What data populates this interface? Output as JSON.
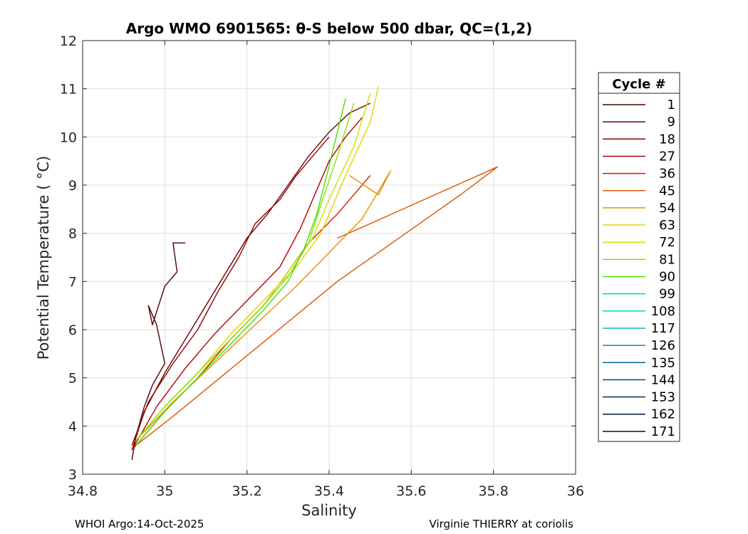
{
  "chart_data": {
    "type": "line",
    "title": "Argo WMO 6901565: θ-S below 500 dbar,  QC=(1,2)",
    "xlabel": "Salinity",
    "ylabel": "Potential Temperature ( °C)",
    "xlim": [
      34.8,
      36
    ],
    "ylim": [
      3,
      12
    ],
    "xticks": [
      34.8,
      35,
      35.2,
      35.4,
      35.6,
      35.8,
      36
    ],
    "xtick_labels": [
      "34.8",
      "35",
      "35.2",
      "35.4",
      "35.6",
      "35.8",
      "36"
    ],
    "yticks": [
      3,
      4,
      5,
      6,
      7,
      8,
      9,
      10,
      11,
      12
    ],
    "ytick_labels": [
      "3",
      "4",
      "5",
      "6",
      "7",
      "8",
      "9",
      "10",
      "11",
      "12"
    ],
    "grid": true,
    "legend_title": "Cycle #",
    "legend_position": "outside-right",
    "series": [
      {
        "name": "1",
        "color": "#4d0000",
        "x": [
          34.92,
          34.93,
          34.95,
          34.97,
          35.0,
          34.98,
          34.96,
          34.97,
          35.0,
          35.03,
          35.02,
          35.05
        ],
        "y": [
          3.3,
          3.8,
          4.4,
          4.85,
          5.3,
          6.1,
          6.5,
          6.1,
          6.9,
          7.2,
          7.8,
          7.8
        ]
      },
      {
        "name": "9",
        "color": "#6e0000",
        "x": [
          34.92,
          34.95,
          35.0,
          35.05,
          35.1,
          35.15,
          35.2,
          35.25,
          35.3,
          35.35,
          35.4,
          35.45,
          35.5
        ],
        "y": [
          3.5,
          4.3,
          5.1,
          5.8,
          6.5,
          7.2,
          7.9,
          8.4,
          9.0,
          9.6,
          10.1,
          10.5,
          10.7
        ]
      },
      {
        "name": "18",
        "color": "#900000",
        "x": [
          34.92,
          34.96,
          35.02,
          35.08,
          35.13,
          35.18,
          35.22,
          35.28,
          35.32,
          35.36,
          35.4
        ],
        "y": [
          3.6,
          4.5,
          5.3,
          6.0,
          6.8,
          7.5,
          8.2,
          8.7,
          9.2,
          9.6,
          10.0
        ]
      },
      {
        "name": "27",
        "color": "#b80000",
        "x": [
          34.92,
          34.98,
          35.05,
          35.12,
          35.2,
          35.28,
          35.33,
          35.37,
          35.4,
          35.44,
          35.48
        ],
        "y": [
          3.5,
          4.4,
          5.2,
          5.9,
          6.6,
          7.3,
          8.1,
          8.9,
          9.5,
          10.0,
          10.4
        ]
      },
      {
        "name": "36",
        "color": "#d41a00",
        "x": [
          34.92,
          35.0,
          35.08,
          35.16,
          35.24,
          35.3,
          35.35,
          35.42,
          35.5
        ],
        "y": [
          3.5,
          4.3,
          5.0,
          5.8,
          6.5,
          7.2,
          7.8,
          8.4,
          9.2
        ]
      },
      {
        "name": "45",
        "color": "#e05500",
        "x": [
          34.93,
          35.02,
          35.12,
          35.22,
          35.32,
          35.42,
          35.52,
          35.62,
          35.72,
          35.81,
          35.5,
          35.42
        ],
        "y": [
          3.6,
          4.2,
          4.9,
          5.6,
          6.3,
          7.0,
          7.6,
          8.2,
          8.8,
          9.38,
          8.2,
          7.9
        ]
      },
      {
        "name": "54",
        "color": "#e89000",
        "x": [
          34.93,
          35.02,
          35.12,
          35.22,
          35.32,
          35.4,
          35.48,
          35.55,
          35.52,
          35.45
        ],
        "y": [
          3.7,
          4.5,
          5.3,
          6.1,
          6.9,
          7.6,
          8.3,
          9.3,
          8.8,
          9.2
        ]
      },
      {
        "name": "63",
        "color": "#e8d000",
        "x": [
          34.93,
          35.0,
          35.08,
          35.16,
          35.24,
          35.32,
          35.38,
          35.44,
          35.5,
          35.52
        ],
        "y": [
          3.7,
          4.4,
          5.1,
          5.9,
          6.6,
          7.3,
          8.0,
          9.2,
          10.3,
          11.05
        ]
      },
      {
        "name": "72",
        "color": "#c8e000",
        "x": [
          34.93,
          35.0,
          35.08,
          35.16,
          35.24,
          35.3,
          35.36,
          35.4,
          35.46,
          35.5
        ],
        "y": [
          3.7,
          4.4,
          5.1,
          5.8,
          6.5,
          7.2,
          7.9,
          8.7,
          9.8,
          10.9
        ]
      },
      {
        "name": "81",
        "color": "#8ee000",
        "x": [
          34.93,
          35.0,
          35.08,
          35.16,
          35.24,
          35.3,
          35.35,
          35.38,
          35.42,
          35.46
        ],
        "y": [
          3.7,
          4.4,
          5.1,
          5.8,
          6.5,
          7.1,
          7.8,
          8.6,
          9.6,
          10.7
        ]
      },
      {
        "name": "90",
        "color": "#44e000",
        "x": [
          34.93,
          35.0,
          35.08,
          35.16,
          35.24,
          35.3,
          35.34,
          35.37,
          35.4,
          35.44
        ],
        "y": [
          3.6,
          4.3,
          5.0,
          5.7,
          6.4,
          7.0,
          7.7,
          8.4,
          9.4,
          10.8
        ]
      },
      {
        "name": "99",
        "color": "#00e070",
        "x": [],
        "y": []
      },
      {
        "name": "108",
        "color": "#00d8b0",
        "x": [],
        "y": []
      },
      {
        "name": "117",
        "color": "#00b8c0",
        "x": [],
        "y": []
      },
      {
        "name": "126",
        "color": "#0090a8",
        "x": [],
        "y": []
      },
      {
        "name": "135",
        "color": "#006890",
        "x": [],
        "y": []
      },
      {
        "name": "144",
        "color": "#004878",
        "x": [],
        "y": []
      },
      {
        "name": "153",
        "color": "#002860",
        "x": [],
        "y": []
      },
      {
        "name": "162",
        "color": "#001448",
        "x": [],
        "y": []
      },
      {
        "name": "171",
        "color": "#000a40",
        "x": [],
        "y": []
      }
    ]
  },
  "footer": {
    "left": "WHOI Argo:14-Oct-2025",
    "right": "Virginie THIERRY at coriolis"
  }
}
